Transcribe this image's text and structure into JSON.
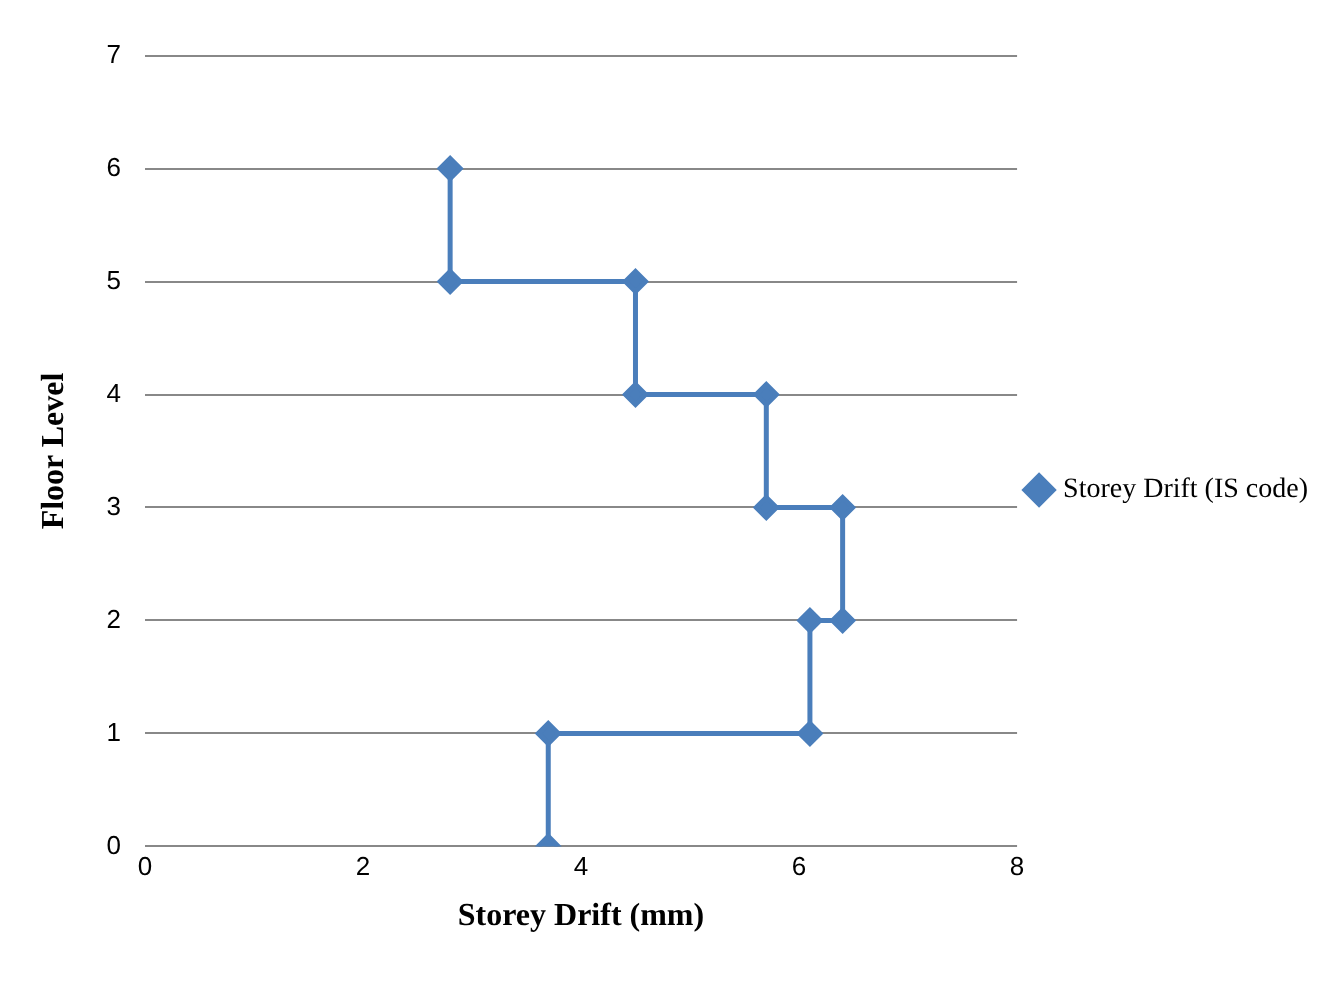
{
  "chart_data": {
    "type": "line",
    "xlabel": "Storey Drift (mm)",
    "ylabel": "Floor Level",
    "series": [
      {
        "name": "Storey Drift (IS code)",
        "color": "#4a7ebb",
        "x": [
          3.7,
          3.7,
          6.1,
          6.1,
          6.4,
          6.4,
          5.7,
          5.7,
          4.5,
          4.5,
          2.8,
          2.8
        ],
        "values": [
          0,
          1,
          1,
          2,
          2,
          3,
          3,
          4,
          4,
          5,
          5,
          6
        ]
      }
    ],
    "xlim": [
      0,
      8
    ],
    "xticks": [
      0,
      2,
      4,
      6,
      8
    ],
    "ylim": [
      0,
      7
    ],
    "yticks": [
      0,
      1,
      2,
      3,
      4,
      5,
      6,
      7
    ],
    "grid": "y",
    "legend": "right",
    "marker": "diamond",
    "line_style": "solid"
  }
}
